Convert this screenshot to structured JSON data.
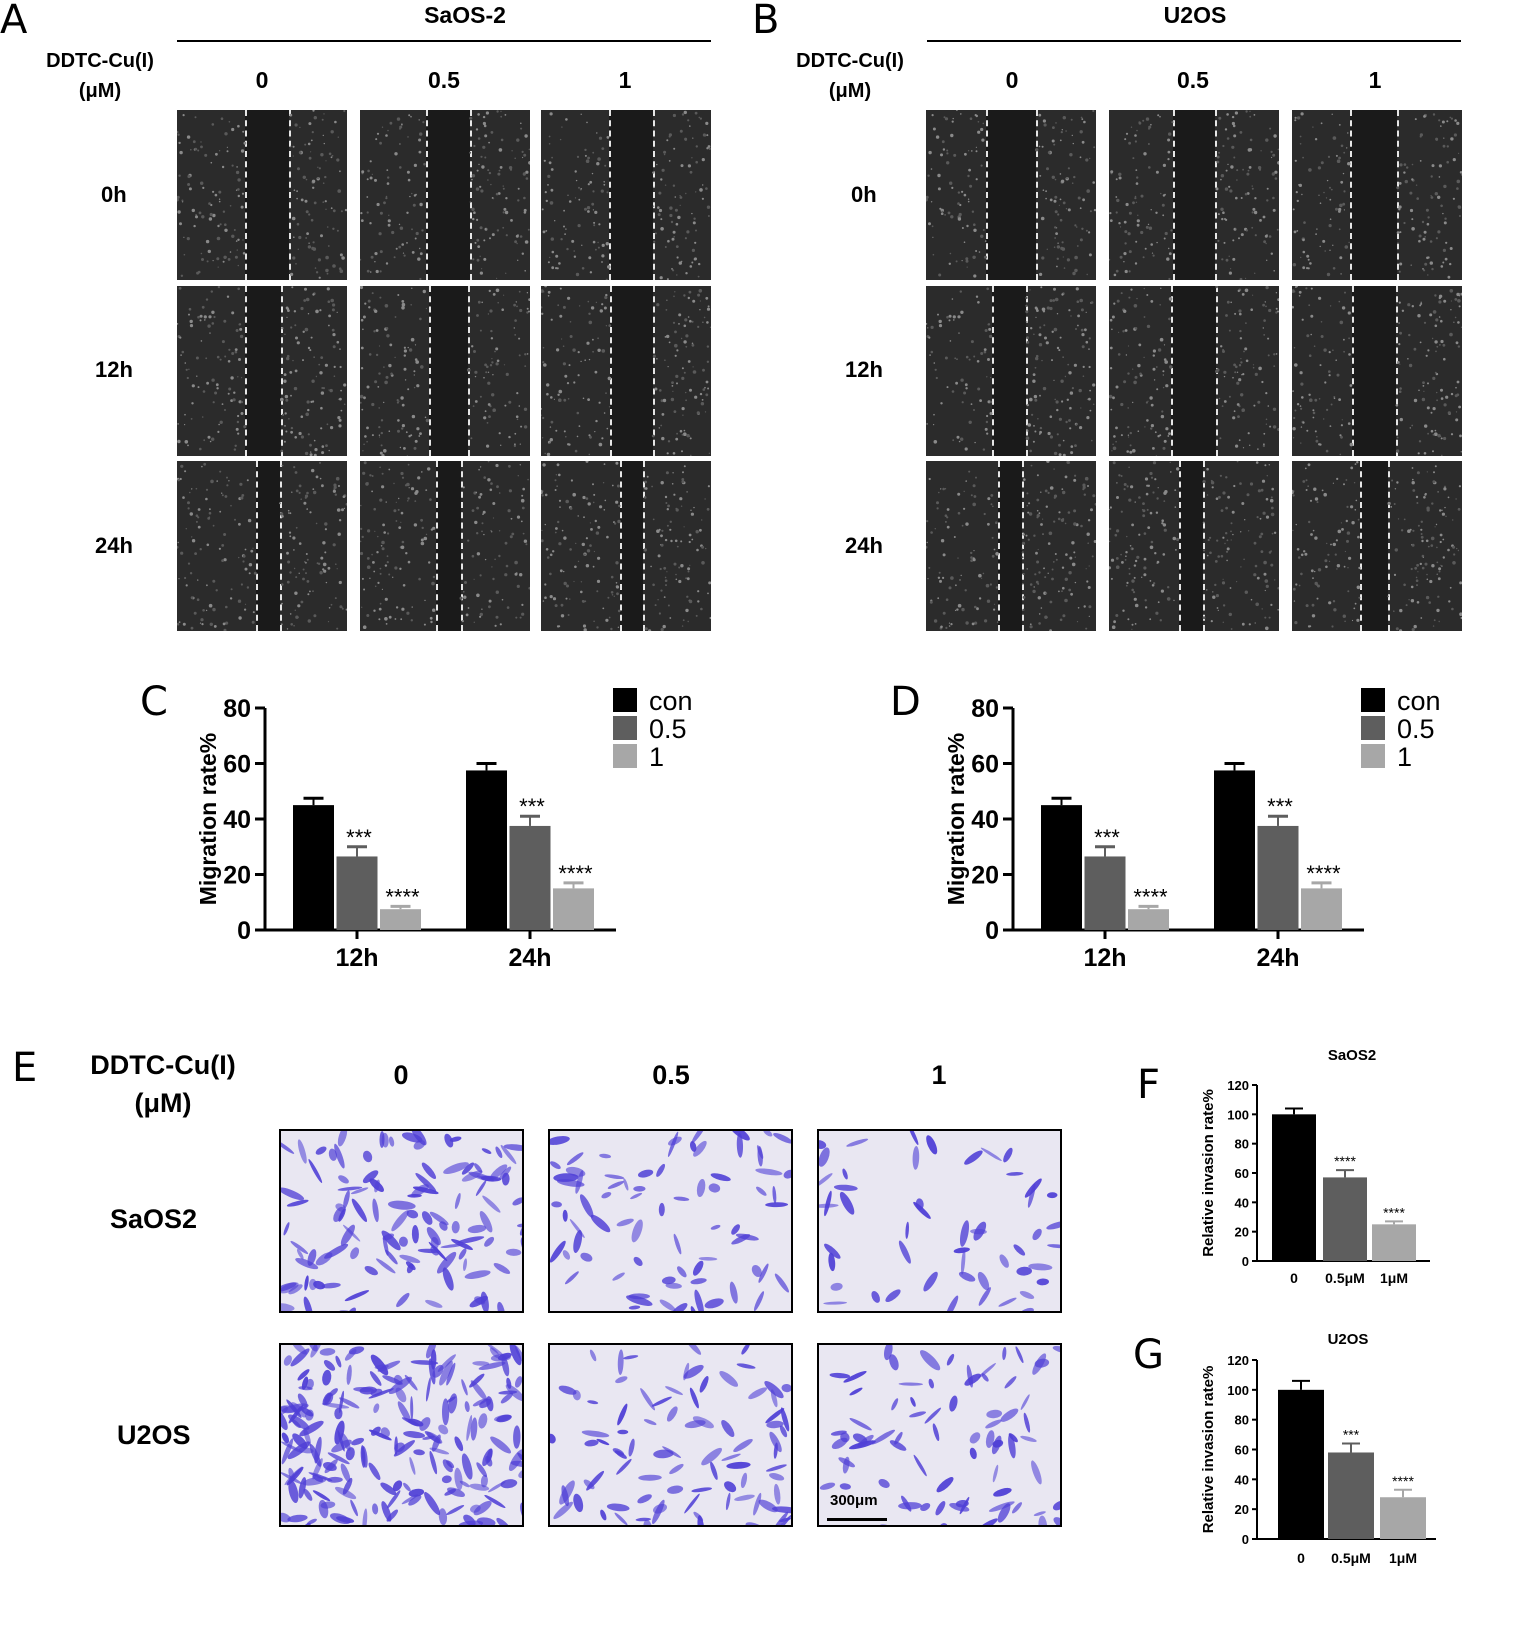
{
  "panels": {
    "A": "A",
    "B": "B",
    "C": "C",
    "D": "D",
    "E": "E",
    "F": "F",
    "G": "G"
  },
  "wound": {
    "left": {
      "cell_line": "SaOS-2",
      "treatment_label_1": "DDTC-Cu(I)",
      "treatment_label_2": "(μM)",
      "doses": [
        "0",
        "0.5",
        "1"
      ],
      "times": [
        "0h",
        "12h",
        "24h"
      ]
    },
    "right": {
      "cell_line": "U2OS",
      "treatment_label_1": "DDTC-Cu(I)",
      "treatment_label_2": "(μM)",
      "doses": [
        "0",
        "0.5",
        "1"
      ],
      "times": [
        "0h",
        "12h",
        "24h"
      ]
    }
  },
  "transwell": {
    "treatment_label_1": "DDTC-Cu(I)",
    "treatment_label_2": "(μM)",
    "doses": [
      "0",
      "0.5",
      "1"
    ],
    "rows": [
      "SaOS2",
      "U2OS"
    ],
    "scale_bar": "300μm"
  },
  "colors": {
    "con": "#000000",
    "dose_05": "#5e5e5e",
    "dose_1": "#a7a7a7",
    "stain": "#4f3fd6",
    "micro_bg": "#2b2b2b"
  },
  "chart_data": [
    {
      "id": "C",
      "type": "bar",
      "categories": [
        "12h",
        "24h"
      ],
      "ylabel": "Migration rate%",
      "ylim": [
        0,
        80
      ],
      "yticks": [
        0,
        20,
        40,
        60,
        80
      ],
      "legend_position": "top-right",
      "series": [
        {
          "name": "con",
          "values": [
            45,
            57.5
          ],
          "errors": [
            2.5,
            2.5
          ],
          "sig": [
            "",
            ""
          ]
        },
        {
          "name": "0.5",
          "values": [
            26.5,
            37.5
          ],
          "errors": [
            3.5,
            3.5
          ],
          "sig": [
            "***",
            "***"
          ]
        },
        {
          "name": "1",
          "values": [
            7.5,
            15
          ],
          "errors": [
            1,
            2
          ],
          "sig": [
            "****",
            "****"
          ]
        }
      ]
    },
    {
      "id": "D",
      "type": "bar",
      "categories": [
        "12h",
        "24h"
      ],
      "ylabel": "Migration rate%",
      "ylim": [
        0,
        80
      ],
      "yticks": [
        0,
        20,
        40,
        60,
        80
      ],
      "legend_position": "top-right",
      "series": [
        {
          "name": "con",
          "values": [
            45,
            57.5
          ],
          "errors": [
            2.5,
            2.5
          ],
          "sig": [
            "",
            ""
          ]
        },
        {
          "name": "0.5",
          "values": [
            26.5,
            37.5
          ],
          "errors": [
            3.5,
            3.5
          ],
          "sig": [
            "***",
            "***"
          ]
        },
        {
          "name": "1",
          "values": [
            7.5,
            15
          ],
          "errors": [
            1,
            2
          ],
          "sig": [
            "****",
            "****"
          ]
        }
      ]
    },
    {
      "id": "F",
      "type": "bar",
      "title": "SaOS2",
      "categories": [
        "0",
        "0.5μM",
        "1μM"
      ],
      "ylabel": "Relative invasion rate%",
      "ylim": [
        0,
        120
      ],
      "yticks": [
        0,
        20,
        40,
        60,
        80,
        100,
        120
      ],
      "values": [
        100,
        57,
        25
      ],
      "errors": [
        4,
        5,
        2
      ],
      "sig": [
        "",
        "****",
        "****"
      ]
    },
    {
      "id": "G",
      "type": "bar",
      "title": "U2OS",
      "categories": [
        "0",
        "0.5μM",
        "1μM"
      ],
      "ylabel": "Relative invasion rate%",
      "ylim": [
        0,
        120
      ],
      "yticks": [
        0,
        20,
        40,
        60,
        80,
        100,
        120
      ],
      "values": [
        100,
        58,
        28
      ],
      "errors": [
        6,
        6,
        5
      ],
      "sig": [
        "",
        "***",
        "****"
      ]
    }
  ]
}
